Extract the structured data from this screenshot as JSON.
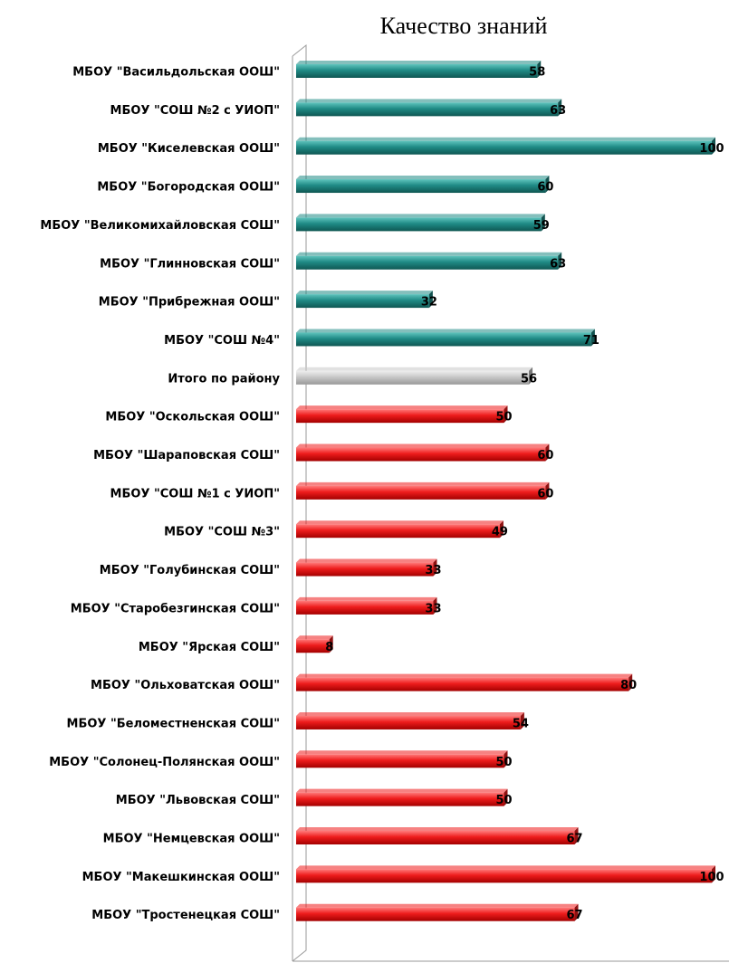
{
  "chart_data": {
    "type": "bar",
    "orientation": "horizontal",
    "title": "Качество знаний",
    "xlabel": "",
    "ylabel": "",
    "xlim": [
      0,
      100
    ],
    "x_ticks": [
      "0",
      "20",
      "40",
      "60",
      "80",
      "100"
    ],
    "grid": false,
    "categories": [
      "МБОУ \"Васильдольская ООШ\"",
      "МБОУ \"СОШ №2 с УИОП\"",
      "МБОУ \"Киселевская ООШ\"",
      "МБОУ \"Богородская ООШ\"",
      "МБОУ \"Великомихайловская СОШ\"",
      "МБОУ \"Глинновская СОШ\"",
      "МБОУ \"Прибрежная ООШ\"",
      "МБОУ \"СОШ №4\"",
      "Итого по району",
      "МБОУ \"Оскольская ООШ\"",
      "МБОУ \"Шараповская СОШ\"",
      "МБОУ \"СОШ №1 с УИОП\"",
      "МБОУ \"СОШ №3\"",
      "МБОУ \"Голубинская СОШ\"",
      "МБОУ \"Старобезгинская СОШ\"",
      "МБОУ \"Ярская СОШ\"",
      "МБОУ \"Ольховатская ООШ\"",
      "МБОУ \"Беломестненская СОШ\"",
      "МБОУ \"Солонец-Полянская ООШ\"",
      "МБОУ \"Львовская СОШ\"",
      "МБОУ \"Немцевская ООШ\"",
      "МБОУ \"Макешкинская ООШ\"",
      "МБОУ \"Тростенецкая СОШ\""
    ],
    "values": [
      58,
      63,
      100,
      60,
      59,
      63,
      32,
      71,
      56,
      50,
      60,
      60,
      49,
      33,
      33,
      8,
      80,
      54,
      50,
      50,
      67,
      100,
      67
    ],
    "value_labels": [
      "58",
      "63",
      "100",
      "60",
      "59",
      "63",
      "32",
      "71",
      "56",
      "50",
      "60",
      "60",
      "49",
      "33",
      "33",
      "8",
      "80",
      "54",
      "50",
      "50",
      "67",
      "100",
      "67"
    ],
    "bar_groups": [
      "above",
      "above",
      "above",
      "above",
      "above",
      "above",
      "above",
      "above",
      "total",
      "below",
      "below",
      "below",
      "below",
      "below",
      "below",
      "below",
      "below",
      "below",
      "below",
      "below",
      "below",
      "below",
      "below"
    ],
    "colors": {
      "above": "#1f8a85",
      "total": "#c8c8c8",
      "below": "#ee1c1c"
    }
  }
}
